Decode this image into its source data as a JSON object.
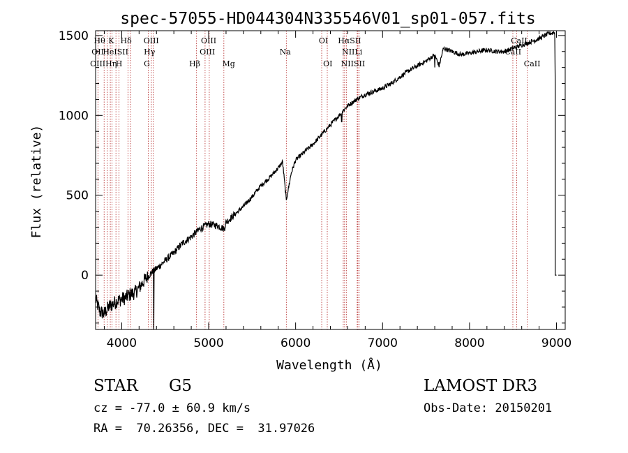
{
  "chart_data": {
    "type": "line",
    "title": "spec-57055-HD044304N335546V01_sp01-057.fits",
    "xlabel": "Wavelength (Å)",
    "ylabel": "Flux (relative)",
    "xlim": [
      3700,
      9100
    ],
    "ylim": [
      -340,
      1530
    ],
    "xticks": [
      4000,
      5000,
      6000,
      7000,
      8000,
      9000
    ],
    "yticks": [
      0,
      500,
      1000,
      1500
    ],
    "series": [
      {
        "name": "spectrum",
        "x": [
          3700,
          3750,
          3800,
          3850,
          3900,
          3950,
          4000,
          4050,
          4100,
          4150,
          4200,
          4250,
          4300,
          4350,
          4400,
          4500,
          4600,
          4700,
          4800,
          4860,
          4900,
          5000,
          5100,
          5180,
          5200,
          5300,
          5400,
          5500,
          5600,
          5700,
          5800,
          5850,
          5893,
          5950,
          6000,
          6100,
          6200,
          6300,
          6400,
          6500,
          6563,
          6600,
          6700,
          6800,
          6900,
          7000,
          7100,
          7200,
          7300,
          7400,
          7500,
          7600,
          7650,
          7700,
          7800,
          7900,
          8000,
          8100,
          8200,
          8300,
          8400,
          8500,
          8600,
          8700,
          8800,
          8900,
          8980
        ],
        "y": [
          -150,
          -230,
          -240,
          -200,
          -180,
          -160,
          -150,
          -140,
          -120,
          -110,
          -80,
          -40,
          -10,
          20,
          40,
          90,
          140,
          200,
          240,
          270,
          290,
          320,
          310,
          290,
          330,
          380,
          430,
          490,
          560,
          610,
          670,
          710,
          470,
          640,
          720,
          770,
          820,
          880,
          940,
          1000,
          1040,
          1060,
          1100,
          1130,
          1150,
          1170,
          1200,
          1240,
          1280,
          1310,
          1340,
          1380,
          1310,
          1420,
          1400,
          1380,
          1390,
          1400,
          1410,
          1400,
          1400,
          1420,
          1440,
          1460,
          1480,
          1510,
          1520
        ]
      }
    ],
    "lines": [
      {
        "name": "Hθ",
        "wavelength": 3798
      },
      {
        "name": "OII",
        "wavelength": 3727
      },
      {
        "name": "OIII",
        "wavelength": 3869
      },
      {
        "name": "Hη",
        "wavelength": 3835
      },
      {
        "name": "K",
        "wavelength": 3934
      },
      {
        "name": "HeI",
        "wavelength": 3889
      },
      {
        "name": "H",
        "wavelength": 3969
      },
      {
        "name": "SII",
        "wavelength": 4072
      },
      {
        "name": "Hδ",
        "wavelength": 4102
      },
      {
        "name": "OIII",
        "wavelength": 4363
      },
      {
        "name": "Hγ",
        "wavelength": 4341
      },
      {
        "name": "G",
        "wavelength": 4305
      },
      {
        "name": "Hβ",
        "wavelength": 4861
      },
      {
        "name": "OIII",
        "wavelength": 4959
      },
      {
        "name": "OIII",
        "wavelength": 5007
      },
      {
        "name": "Mg",
        "wavelength": 5175
      },
      {
        "name": "Na",
        "wavelength": 5893
      },
      {
        "name": "OI",
        "wavelength": 6300
      },
      {
        "name": "OI",
        "wavelength": 6364
      },
      {
        "name": "Hα",
        "wavelength": 6563
      },
      {
        "name": "NII",
        "wavelength": 6548
      },
      {
        "name": "NII",
        "wavelength": 6583
      },
      {
        "name": "SII",
        "wavelength": 6716
      },
      {
        "name": "Li",
        "wavelength": 6708
      },
      {
        "name": "SII",
        "wavelength": 6731
      },
      {
        "name": "CaII",
        "wavelength": 8498
      },
      {
        "name": "CaII",
        "wavelength": 8542
      },
      {
        "name": "CaII",
        "wavelength": 8662
      }
    ]
  },
  "labels": [
    {
      "text": "Hθ",
      "row": 1,
      "wavelength": 3745
    },
    {
      "text": "K",
      "row": 1,
      "wavelength": 3880
    },
    {
      "text": "Hδ",
      "row": 1,
      "wavelength": 4050
    },
    {
      "text": "OIII",
      "row": 1,
      "wavelength": 4340
    },
    {
      "text": "OIII",
      "row": 1,
      "wavelength": 5000
    },
    {
      "text": "OI",
      "row": 1,
      "wavelength": 6320
    },
    {
      "text": "HαSII",
      "row": 1,
      "wavelength": 6620
    },
    {
      "text": "CaII",
      "row": 1,
      "wavelength": 8570
    },
    {
      "text": "OII",
      "row": 2,
      "wavelength": 3725
    },
    {
      "text": "HeISII",
      "row": 2,
      "wavelength": 3930
    },
    {
      "text": "Hγ",
      "row": 2,
      "wavelength": 4320
    },
    {
      "text": "OIII",
      "row": 2,
      "wavelength": 4985
    },
    {
      "text": "Na",
      "row": 2,
      "wavelength": 5880
    },
    {
      "text": "NIILi",
      "row": 2,
      "wavelength": 6650
    },
    {
      "text": "CaII",
      "row": 2,
      "wavelength": 8500
    },
    {
      "text": "OIIIHη",
      "row": 3,
      "wavelength": 3790
    },
    {
      "text": "H",
      "row": 3,
      "wavelength": 3969
    },
    {
      "text": "G",
      "row": 3,
      "wavelength": 4290
    },
    {
      "text": "Hβ",
      "row": 3,
      "wavelength": 4840
    },
    {
      "text": "Mg",
      "row": 3,
      "wavelength": 5230
    },
    {
      "text": "OI",
      "row": 3,
      "wavelength": 6370
    },
    {
      "text": "NIISII",
      "row": 3,
      "wavelength": 6660
    },
    {
      "text": "CaII",
      "row": 3,
      "wavelength": 8720
    }
  ],
  "info": {
    "object": "STAR",
    "subclass": "G5",
    "cz": "cz = -77.0 ± 60.9 km/s",
    "radec": "RA =  70.26356, DEC =  31.97026",
    "survey": "LAMOST DR3",
    "obsdate": "Obs-Date: 20150201"
  },
  "colors": {
    "line_marker": "#b22222",
    "spectrum": "#000000"
  }
}
